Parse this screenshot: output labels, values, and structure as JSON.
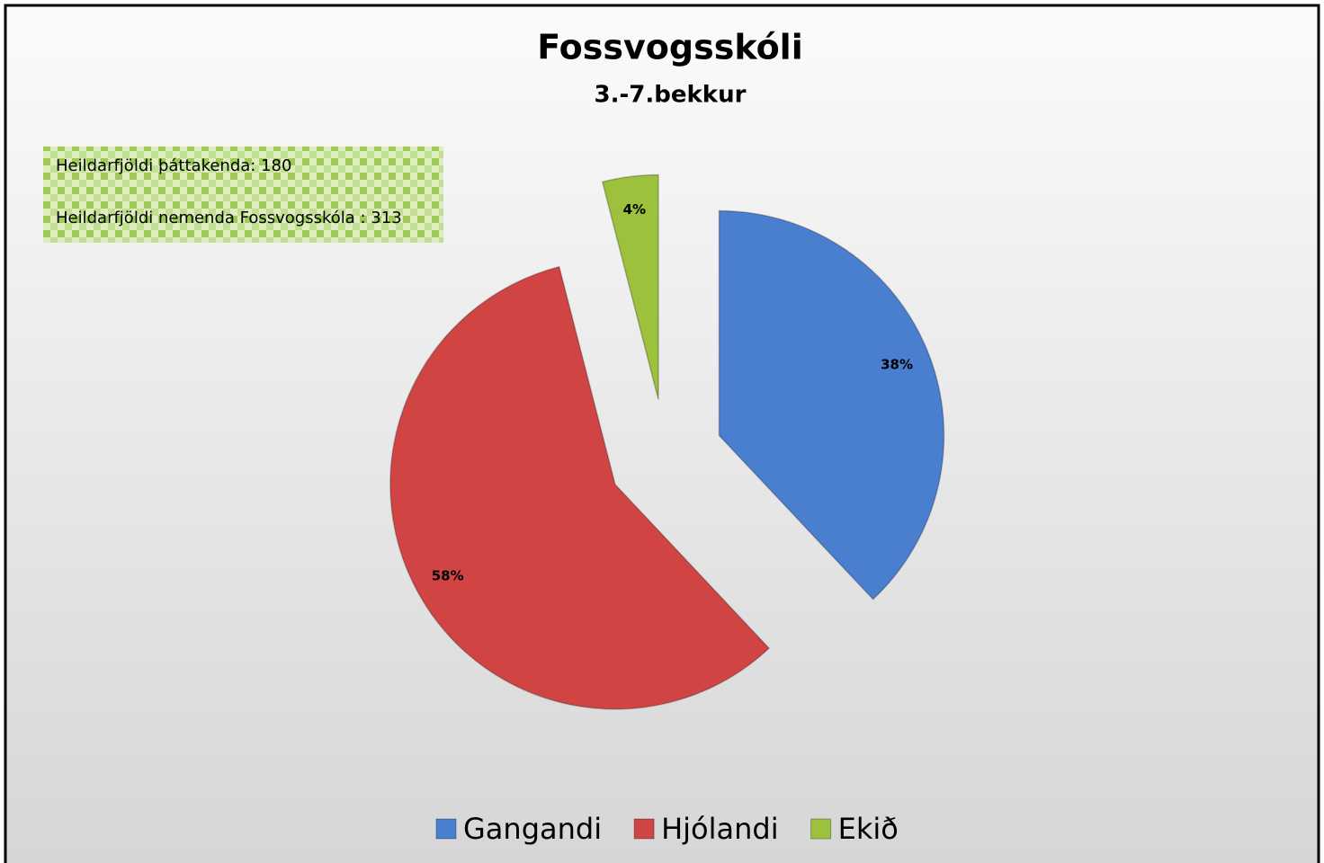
{
  "chart_data": {
    "type": "pie",
    "title": "Fossvogsskóli",
    "subtitle": "3.-7.bekkur",
    "annotations": [
      "Heildarfjöldi þáttakenda:  180",
      "Heildarfjöldi nemenda Fossvogsskóla : 313"
    ],
    "categories": [
      "Gangandi",
      "Hjólandi",
      "Ekið"
    ],
    "values": [
      38,
      58,
      4
    ],
    "value_labels": [
      "38%",
      "58%",
      "4%"
    ],
    "colors": [
      "#4a7fd0",
      "#d04444",
      "#9cc13c"
    ],
    "legend": "bottom"
  }
}
